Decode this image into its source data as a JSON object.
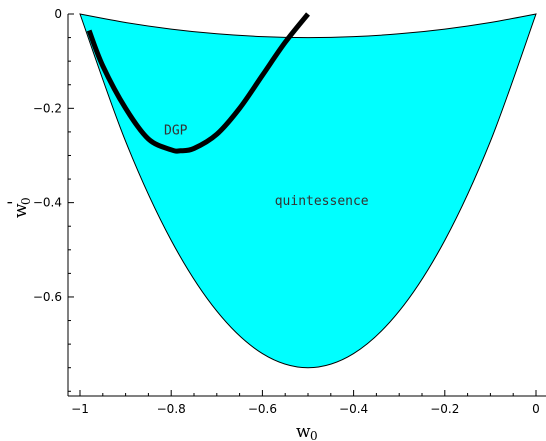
{
  "chart_data": {
    "type": "area",
    "title": "",
    "xlabel": "w",
    "xlabel_sub": "0",
    "ylabel": "w",
    "ylabel_sub": "0",
    "ylabel_mark": "'",
    "xlim": [
      -1.0,
      0.0
    ],
    "ylim": [
      -0.81,
      0.0
    ],
    "grid": false,
    "x_ticks": [
      {
        "value": -1.0,
        "label": "-1"
      },
      {
        "value": -0.8,
        "label": "-0.8"
      },
      {
        "value": -0.6,
        "label": "-0.6"
      },
      {
        "value": -0.4,
        "label": "-0.4"
      },
      {
        "value": -0.2,
        "label": "-0.2"
      },
      {
        "value": 0.0,
        "label": "0"
      }
    ],
    "y_ticks": [
      {
        "value": 0.0,
        "label": "0"
      },
      {
        "value": -0.2,
        "label": "-0.2"
      },
      {
        "value": -0.4,
        "label": "-0.4"
      },
      {
        "value": -0.6,
        "label": "-0.6"
      }
    ],
    "regions": [
      {
        "name": "quintessence",
        "color": "#00ffff",
        "upper": {
          "x": [
            -1.0,
            -0.9,
            -0.8,
            -0.7,
            -0.6,
            -0.5,
            -0.4,
            -0.3,
            -0.2,
            -0.1,
            0.0
          ],
          "y": [
            0.0,
            -0.018,
            -0.032,
            -0.042,
            -0.048,
            -0.05,
            -0.048,
            -0.042,
            -0.032,
            -0.018,
            0.0
          ]
        },
        "lower": {
          "x": [
            -1.0,
            -0.9,
            -0.8,
            -0.7,
            -0.6,
            -0.5,
            -0.4,
            -0.3,
            -0.2,
            -0.1,
            0.0
          ],
          "y": [
            0.0,
            -0.27,
            -0.48,
            -0.63,
            -0.72,
            -0.75,
            -0.72,
            -0.63,
            -0.48,
            -0.27,
            0.0
          ]
        }
      }
    ],
    "series": [
      {
        "name": "DGP",
        "color": "#000000",
        "x": [
          -0.98,
          -0.95,
          -0.9,
          -0.85,
          -0.8,
          -0.78,
          -0.75,
          -0.7,
          -0.65,
          -0.6,
          -0.55,
          -0.5
        ],
        "y": [
          -0.035,
          -0.11,
          -0.2,
          -0.265,
          -0.288,
          -0.29,
          -0.285,
          -0.255,
          -0.2,
          -0.13,
          -0.06,
          0.0
        ]
      }
    ],
    "annotations": [
      {
        "text": "DGP",
        "x": -0.79,
        "y": -0.255
      },
      {
        "text": "quintessence",
        "x": -0.47,
        "y": -0.405
      }
    ]
  }
}
